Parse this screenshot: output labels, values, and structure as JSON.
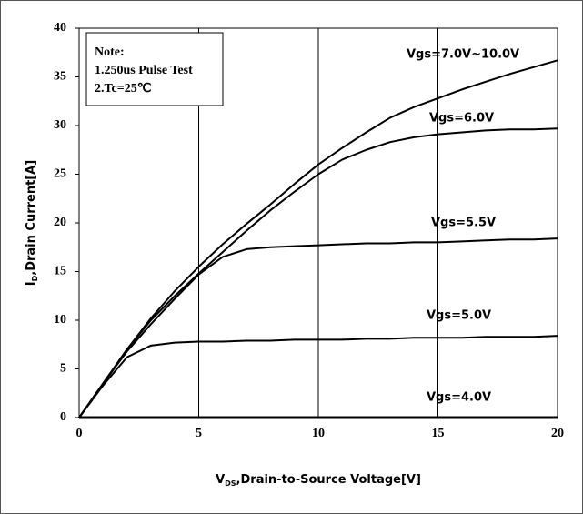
{
  "chart_data": {
    "type": "line",
    "xlabel": [
      "V",
      "DS",
      ",Drain-to-Source Voltage[V]"
    ],
    "ylabel": [
      "I",
      "D",
      ",Drain Current[A]"
    ],
    "note": [
      "Note:",
      "1.250us Pulse Test",
      "2.Tc=25℃"
    ],
    "x": [
      0,
      1,
      2,
      3,
      4,
      5,
      6,
      7,
      8,
      9,
      10,
      11,
      12,
      13,
      14,
      15,
      16,
      17,
      18,
      19,
      20
    ],
    "series": [
      {
        "name": "Vgs=7.0V~10.0V",
        "color": "#000000",
        "values": [
          0,
          3.5,
          7.0,
          10.2,
          13.0,
          15.5,
          17.8,
          19.9,
          21.9,
          24.0,
          26.0,
          27.7,
          29.3,
          30.8,
          31.9,
          32.8,
          33.7,
          34.5,
          35.3,
          36.0,
          36.7
        ]
      },
      {
        "name": "Vgs=6.0V",
        "color": "#000000",
        "values": [
          0,
          3.5,
          7.0,
          10.0,
          12.5,
          14.8,
          17.0,
          19.2,
          21.3,
          23.2,
          25.0,
          26.5,
          27.5,
          28.3,
          28.8,
          29.1,
          29.3,
          29.5,
          29.6,
          29.6,
          29.7
        ]
      },
      {
        "name": "Vgs=5.5V",
        "color": "#000000",
        "values": [
          0,
          3.5,
          6.8,
          9.6,
          12.2,
          14.7,
          16.5,
          17.3,
          17.5,
          17.6,
          17.7,
          17.8,
          17.9,
          17.9,
          18.0,
          18.0,
          18.1,
          18.2,
          18.3,
          18.3,
          18.4
        ]
      },
      {
        "name": "Vgs=5.0V",
        "color": "#000000",
        "values": [
          0,
          3.3,
          6.2,
          7.4,
          7.7,
          7.8,
          7.8,
          7.9,
          7.9,
          8.0,
          8.0,
          8.0,
          8.1,
          8.1,
          8.2,
          8.2,
          8.2,
          8.3,
          8.3,
          8.3,
          8.4
        ]
      },
      {
        "name": "Vgs=4.0V",
        "color": "#000000",
        "values": [
          0,
          0,
          0,
          0,
          0,
          0,
          0,
          0,
          0,
          0,
          0,
          0,
          0,
          0,
          0,
          0,
          0,
          0,
          0,
          0,
          0
        ]
      }
    ],
    "xlim": [
      0,
      20
    ],
    "xticks": [
      0,
      5,
      10,
      15,
      20
    ],
    "ylim": [
      0,
      40
    ],
    "yticks": [
      0,
      5,
      10,
      15,
      20,
      25,
      30,
      35,
      40
    ],
    "grid": "x"
  }
}
